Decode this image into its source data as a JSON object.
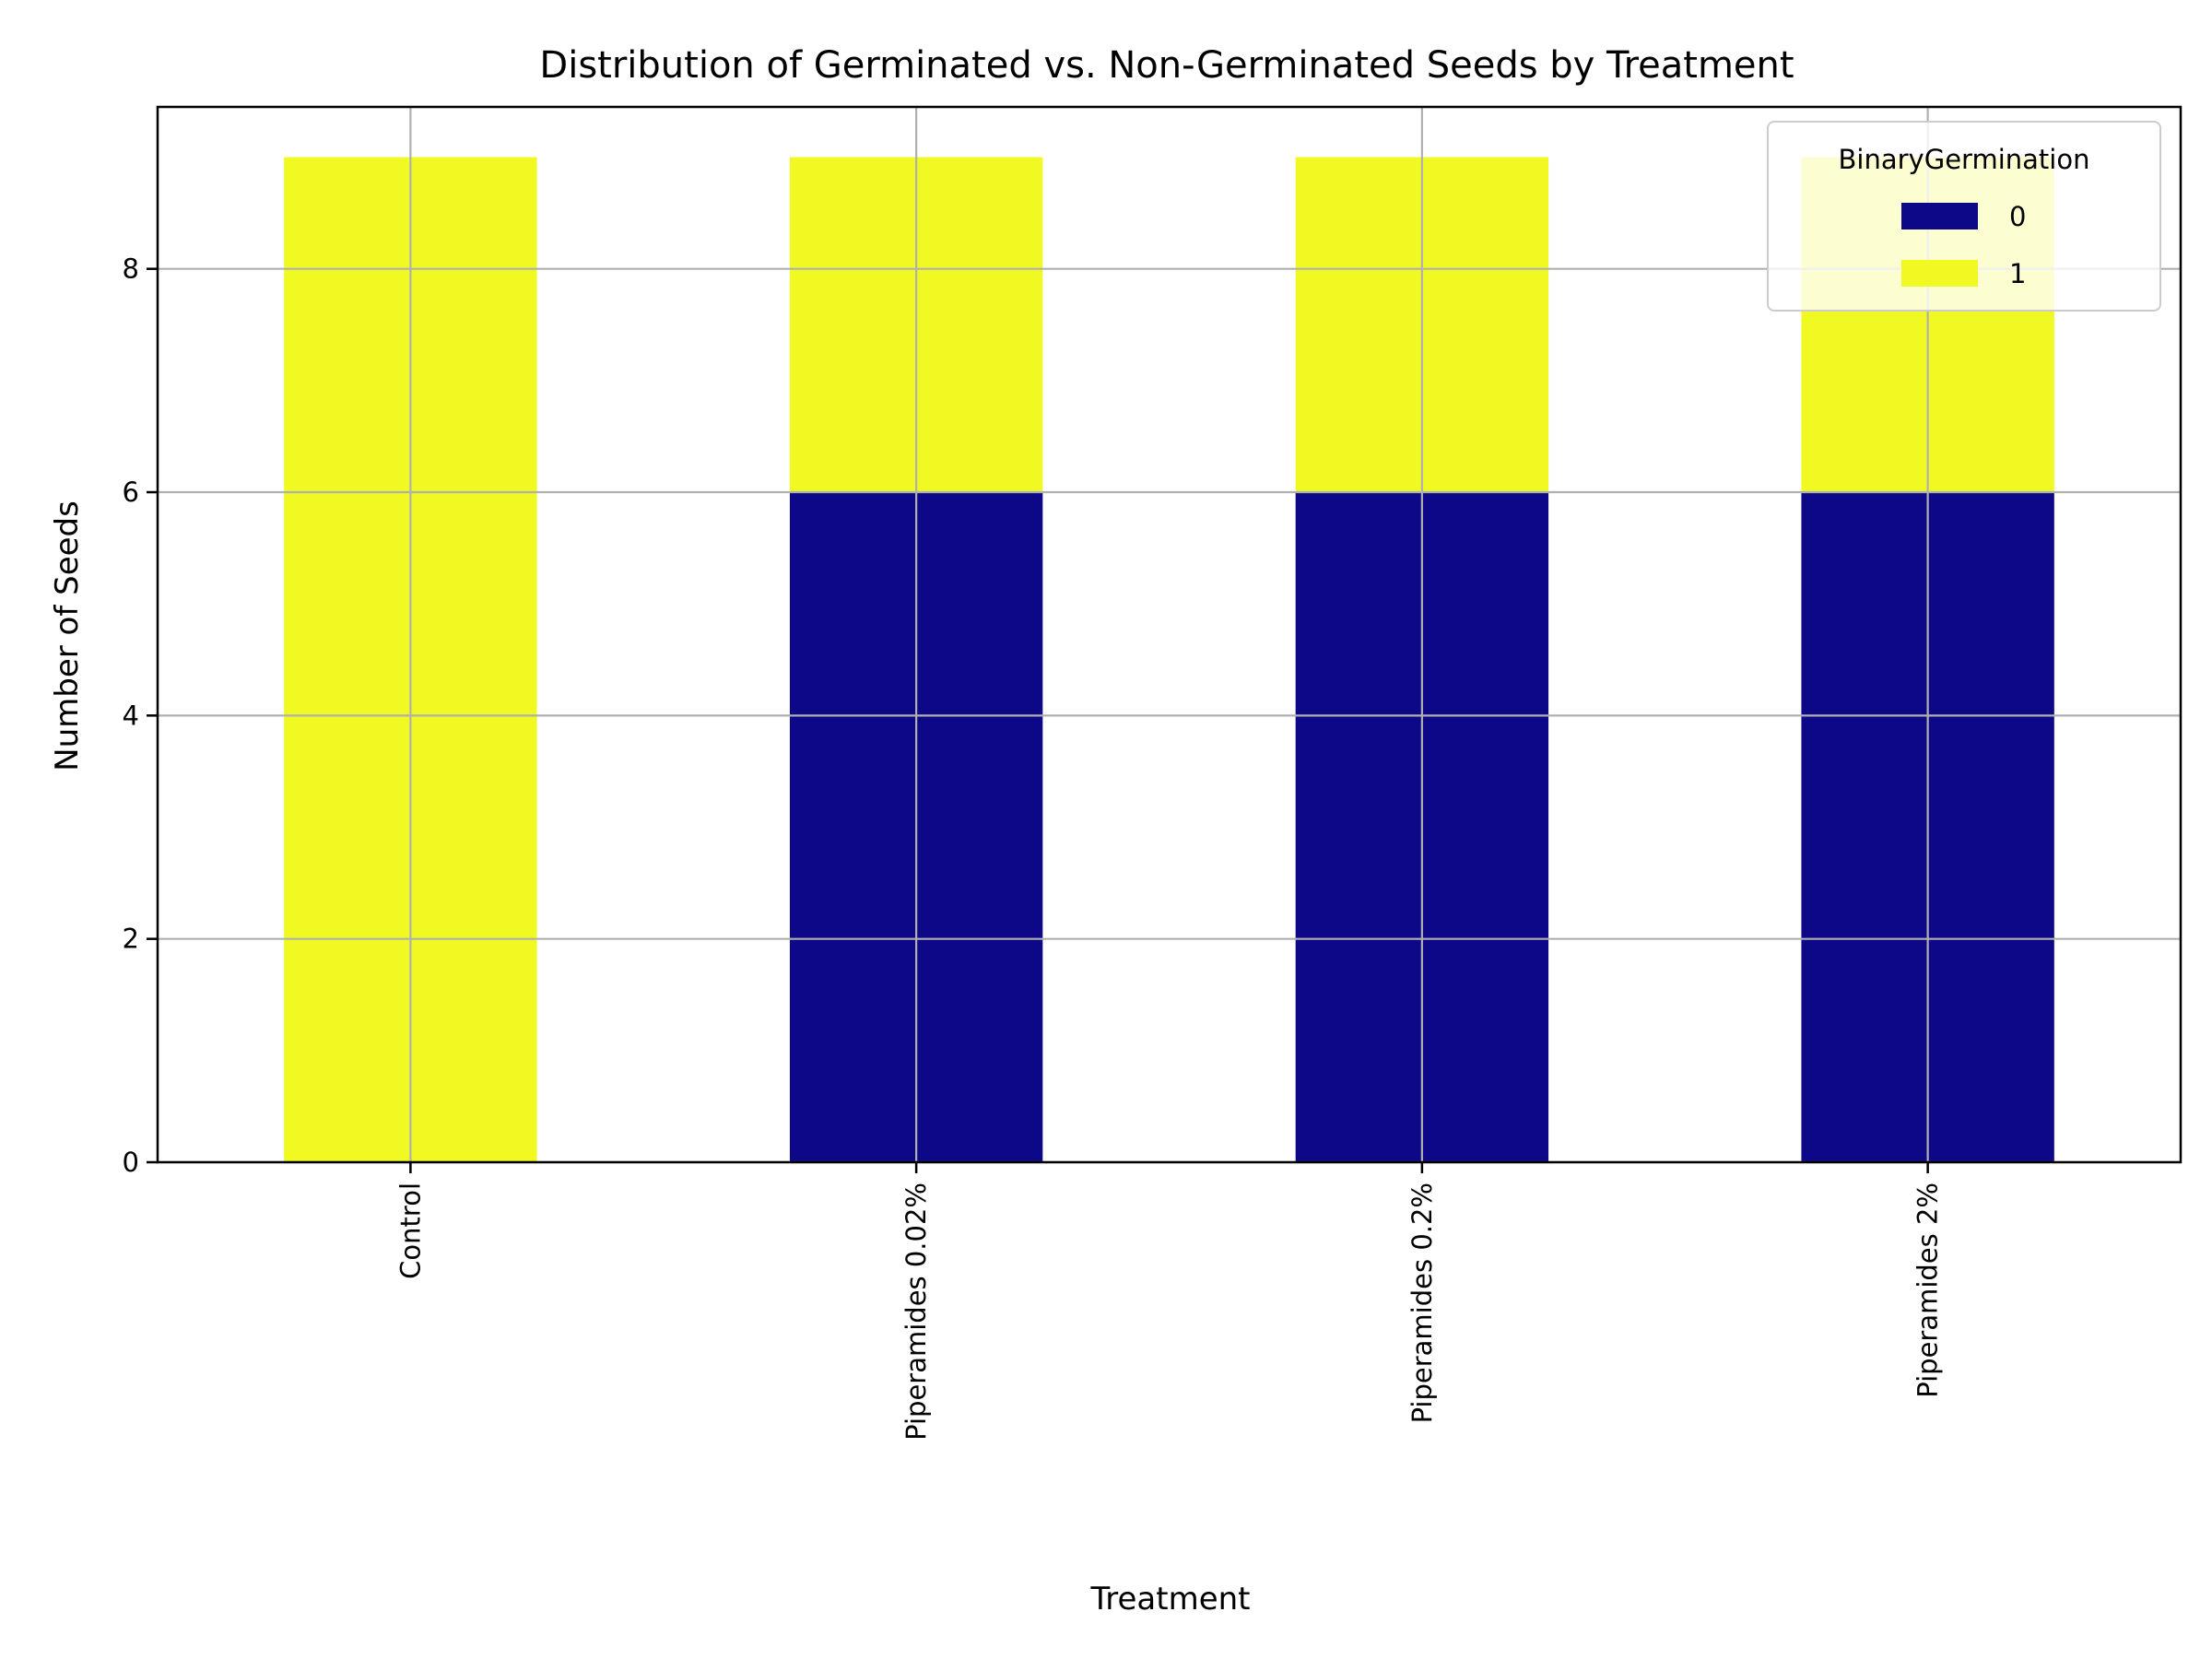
{
  "chart_data": {
    "type": "bar",
    "stacked": true,
    "title": "Distribution of Germinated vs. Non-Germinated Seeds by Treatment",
    "xlabel": "Treatment",
    "ylabel": "Number of Seeds",
    "categories": [
      "Control",
      "Piperamides 0.02%",
      "Piperamides 0.2%",
      "Piperamides 2%"
    ],
    "series": [
      {
        "name": "0",
        "values": [
          0,
          6,
          6,
          6
        ],
        "color": "#0d0887"
      },
      {
        "name": "1",
        "values": [
          9,
          3,
          3,
          3
        ],
        "color": "#f0f921"
      }
    ],
    "legend_title": "BinaryGermination",
    "legend_position": "top-right",
    "ylim": [
      0,
      9.45
    ],
    "yticks": [
      0,
      2,
      4,
      6,
      8
    ],
    "grid": true,
    "x_tick_rotation": "vertical"
  }
}
